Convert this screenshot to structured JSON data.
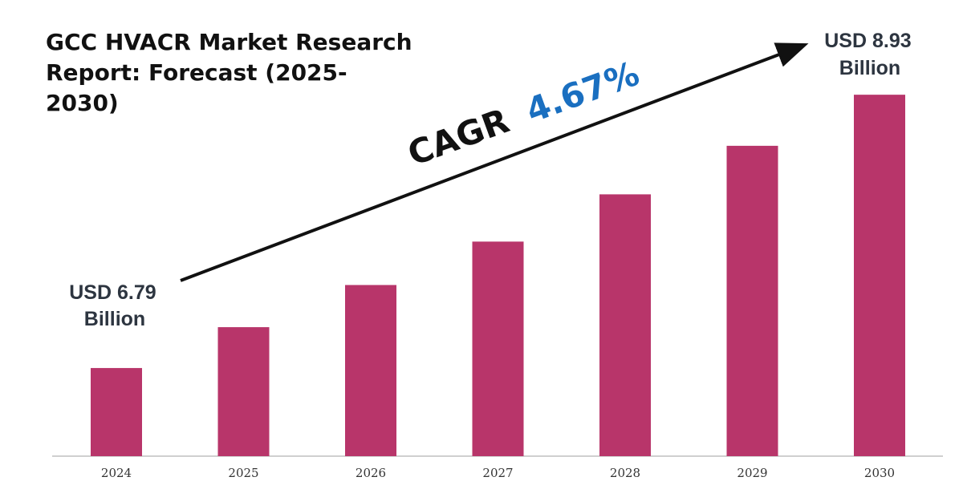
{
  "chart_data": {
    "type": "bar",
    "title_lines": [
      "GCC HVACR Market Research",
      "Report: Forecast (2025-",
      "2030)"
    ],
    "categories": [
      "2024",
      "2025",
      "2026",
      "2027",
      "2028",
      "2029",
      "2030"
    ],
    "values": [
      6.79,
      7.11,
      7.44,
      7.78,
      8.15,
      8.53,
      8.93
    ],
    "ylim": [
      6.1,
      9.0
    ],
    "grid": false,
    "bar_color": "#b8356a",
    "axis_color": "#bfbfbf",
    "annotations": {
      "start_label": [
        "USD 6.79",
        "Billion"
      ],
      "end_label": [
        "USD 8.93",
        "Billion"
      ],
      "cagr_prefix": "CAGR",
      "cagr_value": "4.67%",
      "cagr_value_color": "#1a6fc0",
      "arrow_color": "#111111"
    }
  }
}
